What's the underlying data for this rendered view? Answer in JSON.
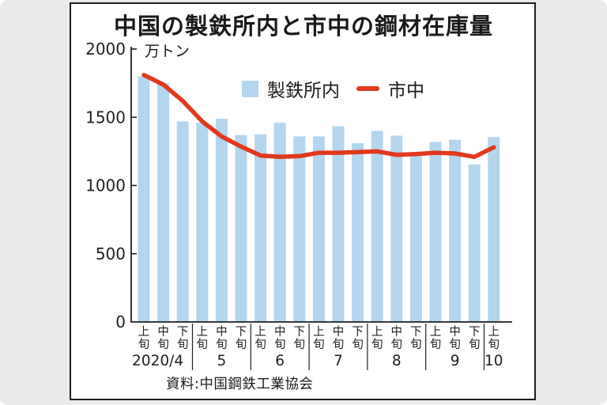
{
  "title": "中国の製鉄所内と市中の鋼材在庫量",
  "unit_label": "万トン",
  "source": "資料:中国鋼鉄工業協会",
  "legend": {
    "bar_label": "製鉄所内",
    "line_label": "市中"
  },
  "colors": {
    "bar": "#b3d6ee",
    "line": "#e0391c",
    "axis": "#1f1f1f",
    "background": "#eaeae8",
    "panel": "#ffffff"
  },
  "chart_data": {
    "type": "bar+line",
    "title": "中国の製鉄所内と市中の鋼材在庫量",
    "ylabel": "万トン",
    "ylim": [
      0,
      2000
    ],
    "yticks": [
      0,
      500,
      1000,
      1500,
      2000
    ],
    "grid": false,
    "legend_position": "top-center",
    "periods": [
      "上旬",
      "中旬",
      "下旬",
      "上旬",
      "中旬",
      "下旬",
      "上旬",
      "中旬",
      "下旬",
      "上旬",
      "中旬",
      "下旬",
      "上旬",
      "中旬",
      "下旬",
      "上旬",
      "中旬",
      "下旬",
      "上旬"
    ],
    "month_groups": [
      {
        "label": "2020/4",
        "count": 3
      },
      {
        "label": "5",
        "count": 3
      },
      {
        "label": "6",
        "count": 3
      },
      {
        "label": "7",
        "count": 3
      },
      {
        "label": "8",
        "count": 3
      },
      {
        "label": "9",
        "count": 3
      },
      {
        "label": "10",
        "count": 1
      }
    ],
    "series": [
      {
        "name": "製鉄所内",
        "type": "bar",
        "color": "#b3d6ee",
        "values": [
          1800,
          1750,
          1470,
          1460,
          1490,
          1370,
          1375,
          1460,
          1360,
          1360,
          1435,
          1310,
          1400,
          1365,
          1220,
          1320,
          1335,
          1155,
          1355
        ]
      },
      {
        "name": "市中",
        "type": "line",
        "color": "#e0391c",
        "values": [
          1810,
          1740,
          1620,
          1470,
          1360,
          1285,
          1220,
          1210,
          1215,
          1240,
          1240,
          1245,
          1250,
          1225,
          1230,
          1240,
          1235,
          1210,
          1280
        ]
      }
    ]
  }
}
